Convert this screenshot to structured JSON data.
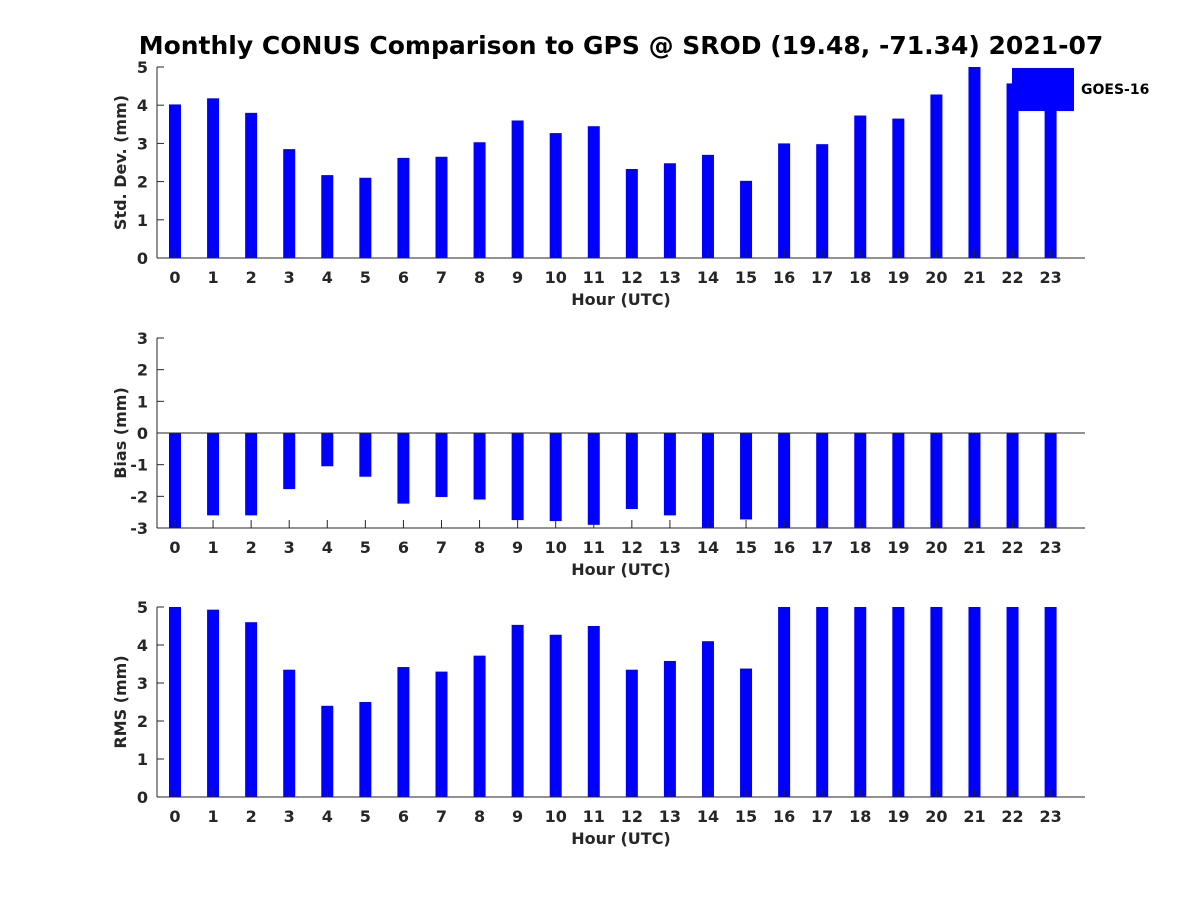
{
  "chart_data": {
    "type": "bar",
    "title": "Monthly CONUS Comparison to GPS @ SROD (19.48, -71.34) 2021-07",
    "bar_color": "#0000ff",
    "legend": {
      "label": "GOES-16",
      "placement": "top-right"
    },
    "categories": [
      "0",
      "1",
      "2",
      "3",
      "4",
      "5",
      "6",
      "7",
      "8",
      "9",
      "10",
      "11",
      "12",
      "13",
      "14",
      "15",
      "16",
      "17",
      "18",
      "19",
      "20",
      "21",
      "22",
      "23"
    ],
    "panels": [
      {
        "name": "std-dev",
        "ylabel": "Std. Dev. (mm)",
        "xlabel": "Hour (UTC)",
        "ylim": [
          0,
          5
        ],
        "yticks": [
          "0",
          "1",
          "2",
          "3",
          "4",
          "5"
        ],
        "series": [
          {
            "name": "GOES-16",
            "values": [
              4.02,
              4.18,
              3.8,
              2.85,
              2.17,
              2.1,
              2.62,
              2.65,
              3.03,
              3.6,
              3.27,
              3.45,
              2.33,
              2.48,
              2.7,
              2.02,
              3.0,
              2.98,
              3.73,
              3.65,
              4.28,
              5.0,
              4.57,
              4.2
            ]
          }
        ]
      },
      {
        "name": "bias",
        "ylabel": "Bias (mm)",
        "xlabel": "Hour (UTC)",
        "ylim": [
          -3,
          3
        ],
        "yticks": [
          "-3",
          "-2",
          "-1",
          "0",
          "1",
          "2",
          "3"
        ],
        "series": [
          {
            "name": "GOES-16",
            "values": [
              -3.0,
              -2.6,
              -2.6,
              -1.77,
              -1.05,
              -1.38,
              -2.23,
              -2.02,
              -2.1,
              -2.75,
              -2.78,
              -2.9,
              -2.4,
              -2.6,
              -3.0,
              -2.73,
              -3.0,
              -3.0,
              -3.0,
              -3.0,
              -3.0,
              -3.0,
              -3.0,
              -3.0
            ]
          }
        ]
      },
      {
        "name": "rms",
        "ylabel": "RMS (mm)",
        "xlabel": "Hour (UTC)",
        "ylim": [
          0,
          5
        ],
        "yticks": [
          "0",
          "1",
          "2",
          "3",
          "4",
          "5"
        ],
        "series": [
          {
            "name": "GOES-16",
            "values": [
              5.0,
              4.93,
              4.6,
              3.35,
              2.4,
              2.5,
              3.42,
              3.3,
              3.72,
              4.53,
              4.27,
              4.5,
              3.35,
              3.58,
              4.1,
              3.38,
              5.0,
              5.0,
              5.0,
              5.0,
              5.0,
              5.0,
              5.0,
              5.0
            ]
          }
        ]
      }
    ]
  }
}
